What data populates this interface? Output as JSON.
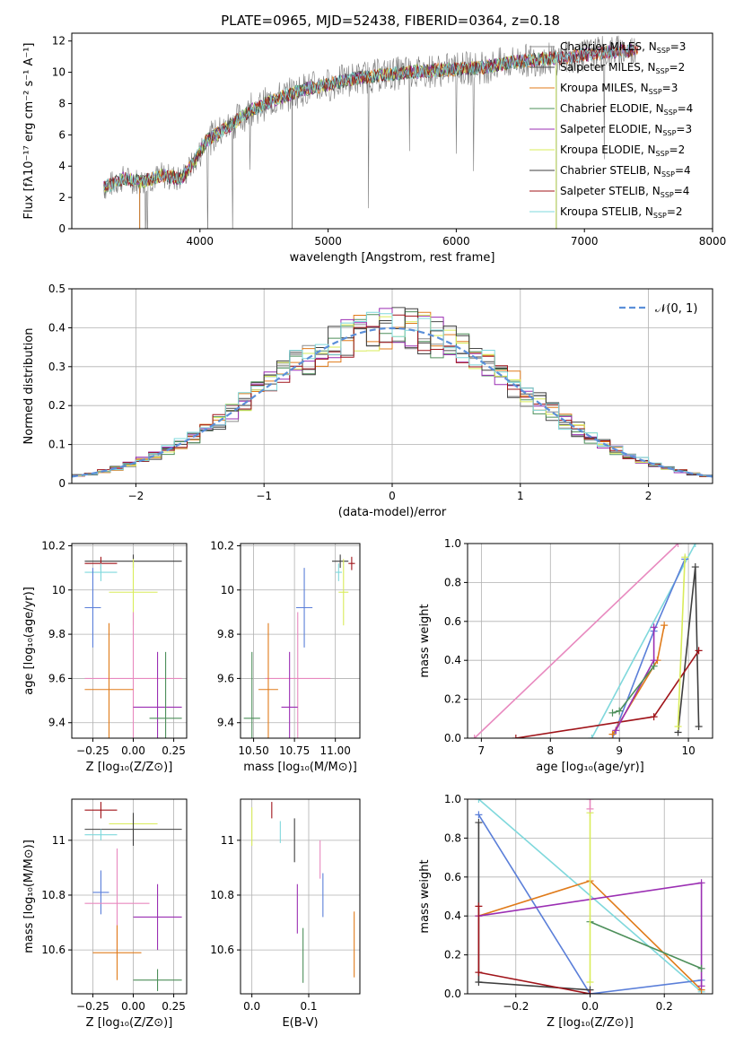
{
  "figure_title": "PLATE=0965, MJD=52438, FIBERID=0364, z=0.18",
  "colors": {
    "chabrier_miles": "#8c8c8c",
    "salpeter_miles": "#4a4a4a",
    "kroupa_miles": "#e07b1a",
    "chabrier_elodie": "#4d8f5a",
    "salpeter_elodie": "#9b2fb3",
    "kroupa_elodie": "#d9ec5a",
    "chabrier_stelib": "#3f3f3f",
    "salpeter_stelib": "#a0141a",
    "kroupa_stelib": "#7fd8dc",
    "gaussian": "#5b8fd9",
    "pink": "#e889bf",
    "blue": "#5b7fd9"
  },
  "chart_data": [
    {
      "id": "spectrum",
      "type": "line",
      "title": "PLATE=0965, MJD=52438, FIBERID=0364, z=0.18",
      "xlabel": "wavelength [Angstrom, rest frame]",
      "ylabel": "Flux [fλ10⁻¹⁷ erg cm⁻² s⁻¹ A⁻¹]",
      "xlim": [
        3000,
        8000
      ],
      "ylim": [
        0,
        12.5
      ],
      "xticks": [
        4000,
        5000,
        6000,
        7000,
        8000
      ],
      "yticks": [
        0,
        2,
        4,
        6,
        8,
        10,
        12
      ],
      "legend_position": "right",
      "grid": false,
      "legend": [
        {
          "label": "Chabrier MILES, N",
          "sub": "SSP",
          "suffix": "=3",
          "color_key": "chabrier_miles"
        },
        {
          "label": "Salpeter MILES, N",
          "sub": "SSP",
          "suffix": "=2",
          "color_key": "salpeter_miles"
        },
        {
          "label": "Kroupa MILES, N",
          "sub": "SSP",
          "suffix": "=3",
          "color_key": "kroupa_miles"
        },
        {
          "label": "Chabrier ELODIE, N",
          "sub": "SSP",
          "suffix": "=4",
          "color_key": "chabrier_elodie"
        },
        {
          "label": "Salpeter ELODIE, N",
          "sub": "SSP",
          "suffix": "=3",
          "color_key": "salpeter_elodie"
        },
        {
          "label": "Kroupa ELODIE, N",
          "sub": "SSP",
          "suffix": "=2",
          "color_key": "kroupa_elodie"
        },
        {
          "label": "Chabrier STELIB, N",
          "sub": "SSP",
          "suffix": "=4",
          "color_key": "chabrier_stelib"
        },
        {
          "label": "Salpeter STELIB, N",
          "sub": "SSP",
          "suffix": "=4",
          "color_key": "salpeter_stelib"
        },
        {
          "label": "Kroupa STELIB, N",
          "sub": "SSP",
          "suffix": "=2",
          "color_key": "kroupa_stelib"
        }
      ],
      "continuum": {
        "x": [
          3250,
          3400,
          3550,
          3700,
          3850,
          3950,
          4050,
          4200,
          4400,
          4600,
          4800,
          5000,
          5200,
          5400,
          5600,
          5800,
          6000,
          6200,
          6400,
          6600,
          6800,
          7000,
          7200,
          7400
        ],
        "y": [
          2.6,
          3.2,
          3.0,
          3.4,
          3.2,
          4.2,
          5.6,
          6.4,
          7.6,
          8.3,
          8.9,
          9.2,
          9.6,
          9.8,
          10.0,
          10.1,
          10.2,
          10.3,
          10.6,
          10.8,
          10.9,
          11.1,
          11.3,
          11.4
        ]
      },
      "model_cutoffs": {
        "blue_edge": 3530,
        "red_edge": 6780,
        "red_edge_2": 7420
      }
    },
    {
      "id": "residuals",
      "type": "histogram",
      "xlabel": "(data-model)/error",
      "ylabel": "Normed distribution",
      "xlim": [
        -2.5,
        2.5
      ],
      "ylim": [
        0,
        0.5
      ],
      "xticks": [
        -2,
        -1,
        0,
        1,
        2
      ],
      "yticks": [
        0,
        0.1,
        0.2,
        0.3,
        0.4,
        0.5
      ],
      "grid": true,
      "legend_position": "top-right",
      "legend_label": "𝒩(0, 1)",
      "bin_width": 0.1,
      "series_count": 9
    },
    {
      "id": "age_vs_Z",
      "type": "errorbar",
      "xlabel": "Z [log₁₀(Z/Z⊙)]",
      "ylabel": "age  [log₁₀(age/yr)]",
      "xlim": [
        -0.38,
        0.33
      ],
      "ylim": [
        9.33,
        10.21
      ],
      "xticks": [
        -0.25,
        0.0,
        0.25
      ],
      "xtick_labels": [
        "−0.25",
        "0.00",
        "0.25"
      ],
      "yticks": [
        9.4,
        9.6,
        9.8,
        10.0,
        10.2
      ],
      "grid": true,
      "points": [
        {
          "color_key": "chabrier_stelib",
          "x": 0.0,
          "y": 10.13,
          "xerr": 0.3,
          "yerr": 0.03
        },
        {
          "color_key": "salpeter_stelib",
          "x": -0.2,
          "y": 10.12,
          "xerr": 0.1,
          "yerr": 0.03
        },
        {
          "color_key": "kroupa_stelib",
          "x": -0.2,
          "y": 10.08,
          "xerr": 0.1,
          "yerr": 0.04
        },
        {
          "color_key": "kroupa_elodie",
          "x": 0.0,
          "y": 9.99,
          "xerr": 0.15,
          "yerr": 0.15
        },
        {
          "color_key": "blue",
          "x": -0.25,
          "y": 9.92,
          "xerr": 0.05,
          "yerr": 0.18
        },
        {
          "color_key": "pink",
          "x": 0.0,
          "y": 9.6,
          "xerr": 0.3,
          "yerr": 0.3
        },
        {
          "color_key": "kroupa_miles",
          "x": -0.15,
          "y": 9.55,
          "xerr": 0.15,
          "yerr": 0.3
        },
        {
          "color_key": "salpeter_elodie",
          "x": 0.15,
          "y": 9.47,
          "xerr": 0.15,
          "yerr": 0.25
        },
        {
          "color_key": "chabrier_elodie",
          "x": 0.2,
          "y": 9.42,
          "xerr": 0.1,
          "yerr": 0.3
        }
      ]
    },
    {
      "id": "age_vs_mass",
      "type": "errorbar",
      "xlabel": "mass [log₁₀(M/M⊙)]",
      "ylabel": "",
      "xlim": [
        10.42,
        11.15
      ],
      "ylim": [
        9.33,
        10.21
      ],
      "xticks": [
        10.5,
        10.75,
        11.0
      ],
      "xtick_labels": [
        "10.50",
        "10.75",
        "11.00"
      ],
      "yticks": [
        9.4,
        9.6,
        9.8,
        10.0,
        10.2
      ],
      "grid": true,
      "points": [
        {
          "color_key": "chabrier_stelib",
          "x": 11.03,
          "y": 10.13,
          "xerr": 0.05,
          "yerr": 0.03
        },
        {
          "color_key": "salpeter_stelib",
          "x": 11.1,
          "y": 10.12,
          "xerr": 0.02,
          "yerr": 0.03
        },
        {
          "color_key": "kroupa_stelib",
          "x": 11.02,
          "y": 10.08,
          "xerr": 0.02,
          "yerr": 0.04
        },
        {
          "color_key": "kroupa_elodie",
          "x": 11.05,
          "y": 9.99,
          "xerr": 0.03,
          "yerr": 0.15
        },
        {
          "color_key": "blue",
          "x": 10.81,
          "y": 9.92,
          "xerr": 0.05,
          "yerr": 0.18
        },
        {
          "color_key": "pink",
          "x": 10.77,
          "y": 9.6,
          "xerr": 0.2,
          "yerr": 0.3
        },
        {
          "color_key": "kroupa_miles",
          "x": 10.59,
          "y": 9.55,
          "xerr": 0.06,
          "yerr": 0.3
        },
        {
          "color_key": "salpeter_elodie",
          "x": 10.72,
          "y": 9.47,
          "xerr": 0.05,
          "yerr": 0.25
        },
        {
          "color_key": "chabrier_elodie",
          "x": 10.49,
          "y": 9.42,
          "xerr": 0.05,
          "yerr": 0.3
        }
      ]
    },
    {
      "id": "mass_weight_vs_age",
      "type": "line",
      "xlabel": "age  [log₁₀(age/yr)]",
      "ylabel": "mass weight",
      "xlim": [
        6.8,
        10.35
      ],
      "ylim": [
        0,
        1.0
      ],
      "xticks": [
        7,
        8,
        9,
        10
      ],
      "yticks": [
        0.0,
        0.2,
        0.4,
        0.6,
        0.8,
        1.0
      ],
      "ytick_labels": [
        "0.0",
        "0.2",
        "0.4",
        "0.6",
        "0.8",
        "1.0"
      ],
      "grid": true,
      "series": [
        {
          "color_key": "pink",
          "x": [
            6.9,
            9.85
          ],
          "y": [
            0.0,
            1.0
          ]
        },
        {
          "color_key": "kroupa_stelib",
          "x": [
            8.6,
            10.1
          ],
          "y": [
            0.0,
            1.0
          ]
        },
        {
          "color_key": "blue",
          "x": [
            8.9,
            9.5,
            9.95
          ],
          "y": [
            0.0,
            0.55,
            0.92
          ]
        },
        {
          "color_key": "chabrier_stelib",
          "x": [
            9.85,
            10.1,
            10.15
          ],
          "y": [
            0.03,
            0.88,
            0.06
          ]
        },
        {
          "color_key": "salpeter_stelib",
          "x": [
            7.5,
            9.5,
            10.15
          ],
          "y": [
            0.0,
            0.11,
            0.45
          ]
        },
        {
          "color_key": "kroupa_miles",
          "x": [
            8.9,
            9.55,
            9.65
          ],
          "y": [
            0.02,
            0.4,
            0.58
          ]
        },
        {
          "color_key": "salpeter_elodie",
          "x": [
            8.95,
            9.5,
            9.5
          ],
          "y": [
            0.04,
            0.4,
            0.57
          ]
        },
        {
          "color_key": "chabrier_elodie",
          "x": [
            8.9,
            9.0,
            9.5
          ],
          "y": [
            0.13,
            0.14,
            0.37
          ]
        },
        {
          "color_key": "kroupa_elodie",
          "x": [
            9.85,
            9.95
          ],
          "y": [
            0.06,
            0.93
          ]
        }
      ]
    },
    {
      "id": "mass_vs_Z",
      "type": "errorbar",
      "xlabel": "Z [log₁₀(Z/Z⊙)]",
      "ylabel": "mass [log₁₀(M/M⊙)]",
      "xlim": [
        -0.38,
        0.33
      ],
      "ylim": [
        10.44,
        11.15
      ],
      "xticks": [
        -0.25,
        0.0,
        0.25
      ],
      "xtick_labels": [
        "−0.25",
        "0.00",
        "0.25"
      ],
      "yticks": [
        10.6,
        10.8,
        11.0
      ],
      "grid": true,
      "points": [
        {
          "color_key": "salpeter_stelib",
          "x": -0.2,
          "y": 11.11,
          "xerr": 0.1,
          "yerr": 0.03
        },
        {
          "color_key": "kroupa_elodie",
          "x": 0.0,
          "y": 11.06,
          "xerr": 0.15,
          "yerr": 0.03
        },
        {
          "color_key": "chabrier_stelib",
          "x": 0.0,
          "y": 11.04,
          "xerr": 0.3,
          "yerr": 0.06
        },
        {
          "color_key": "kroupa_stelib",
          "x": -0.2,
          "y": 11.02,
          "xerr": 0.1,
          "yerr": 0.02
        },
        {
          "color_key": "blue",
          "x": -0.2,
          "y": 10.81,
          "xerr": 0.05,
          "yerr": 0.08
        },
        {
          "color_key": "pink",
          "x": -0.1,
          "y": 10.77,
          "xerr": 0.2,
          "yerr": 0.2
        },
        {
          "color_key": "salpeter_elodie",
          "x": 0.15,
          "y": 10.72,
          "xerr": 0.15,
          "yerr": 0.12
        },
        {
          "color_key": "kroupa_miles",
          "x": -0.1,
          "y": 10.59,
          "xerr": 0.15,
          "yerr": 0.1
        },
        {
          "color_key": "chabrier_elodie",
          "x": 0.15,
          "y": 10.49,
          "xerr": 0.15,
          "yerr": 0.04
        }
      ]
    },
    {
      "id": "mass_vs_ebv",
      "type": "errorbar",
      "xlabel": "E(B-V)",
      "ylabel": "",
      "xlim": [
        -0.02,
        0.19
      ],
      "ylim": [
        10.44,
        11.15
      ],
      "xticks": [
        0.0,
        0.1
      ],
      "xtick_labels": [
        "0.0",
        "0.1"
      ],
      "yticks": [
        10.6,
        10.8,
        11.0
      ],
      "grid": true,
      "points": [
        {
          "color_key": "salpeter_stelib",
          "x": 0.035,
          "y": 11.11,
          "xerr": 0.0,
          "yerr": 0.03
        },
        {
          "color_key": "kroupa_elodie",
          "x": 0.0,
          "y": 11.05,
          "xerr": 0.0,
          "yerr": 0.07
        },
        {
          "color_key": "chabrier_stelib",
          "x": 0.075,
          "y": 11.0,
          "xerr": 0.0,
          "yerr": 0.08
        },
        {
          "color_key": "kroupa_stelib",
          "x": 0.05,
          "y": 11.03,
          "xerr": 0.0,
          "yerr": 0.04
        },
        {
          "color_key": "pink",
          "x": 0.12,
          "y": 10.93,
          "xerr": 0.0,
          "yerr": 0.07
        },
        {
          "color_key": "salpeter_elodie",
          "x": 0.08,
          "y": 10.75,
          "xerr": 0.0,
          "yerr": 0.09
        },
        {
          "color_key": "blue",
          "x": 0.125,
          "y": 10.8,
          "xerr": 0.0,
          "yerr": 0.08
        },
        {
          "color_key": "chabrier_elodie",
          "x": 0.09,
          "y": 10.58,
          "xerr": 0.0,
          "yerr": 0.1
        },
        {
          "color_key": "kroupa_miles",
          "x": 0.18,
          "y": 10.62,
          "xerr": 0.0,
          "yerr": 0.12
        }
      ]
    },
    {
      "id": "mass_weight_vs_Z",
      "type": "line",
      "xlabel": "Z [log₁₀(Z/Z⊙)]",
      "ylabel": "mass weight",
      "xlim": [
        -0.33,
        0.33
      ],
      "ylim": [
        0,
        1.0
      ],
      "xticks": [
        -0.2,
        0.0,
        0.2
      ],
      "xtick_labels": [
        "−0.2",
        "0.0",
        "0.2"
      ],
      "yticks": [
        0.0,
        0.2,
        0.4,
        0.6,
        0.8,
        1.0
      ],
      "ytick_labels": [
        "0.0",
        "0.2",
        "0.4",
        "0.6",
        "0.8",
        "1.0"
      ],
      "grid": true,
      "series": [
        {
          "color_key": "kroupa_stelib",
          "x": [
            -0.3,
            0.3
          ],
          "y": [
            1.0,
            0.01
          ]
        },
        {
          "color_key": "blue",
          "x": [
            -0.3,
            0.0,
            0.3
          ],
          "y": [
            0.92,
            0.0,
            0.07
          ]
        },
        {
          "color_key": "chabrier_stelib",
          "x": [
            -0.3,
            -0.3,
            0.0
          ],
          "y": [
            0.88,
            0.06,
            0.02
          ]
        },
        {
          "color_key": "kroupa_miles",
          "x": [
            -0.3,
            0.0,
            0.3
          ],
          "y": [
            0.4,
            0.58,
            0.02
          ]
        },
        {
          "color_key": "salpeter_elodie",
          "x": [
            -0.3,
            0.3,
            0.3
          ],
          "y": [
            0.4,
            0.57,
            0.04
          ]
        },
        {
          "color_key": "salpeter_stelib",
          "x": [
            -0.3,
            -0.3,
            0.0
          ],
          "y": [
            0.45,
            0.11,
            0.0
          ]
        },
        {
          "color_key": "chabrier_elodie",
          "x": [
            0.0,
            0.3
          ],
          "y": [
            0.37,
            0.13
          ]
        },
        {
          "color_key": "kroupa_elodie",
          "x": [
            0.0,
            0.0
          ],
          "y": [
            0.06,
            0.93
          ]
        },
        {
          "color_key": "pink",
          "x": [
            0.0,
            0.0
          ],
          "y": [
            0.95,
            1.0
          ]
        }
      ]
    }
  ]
}
